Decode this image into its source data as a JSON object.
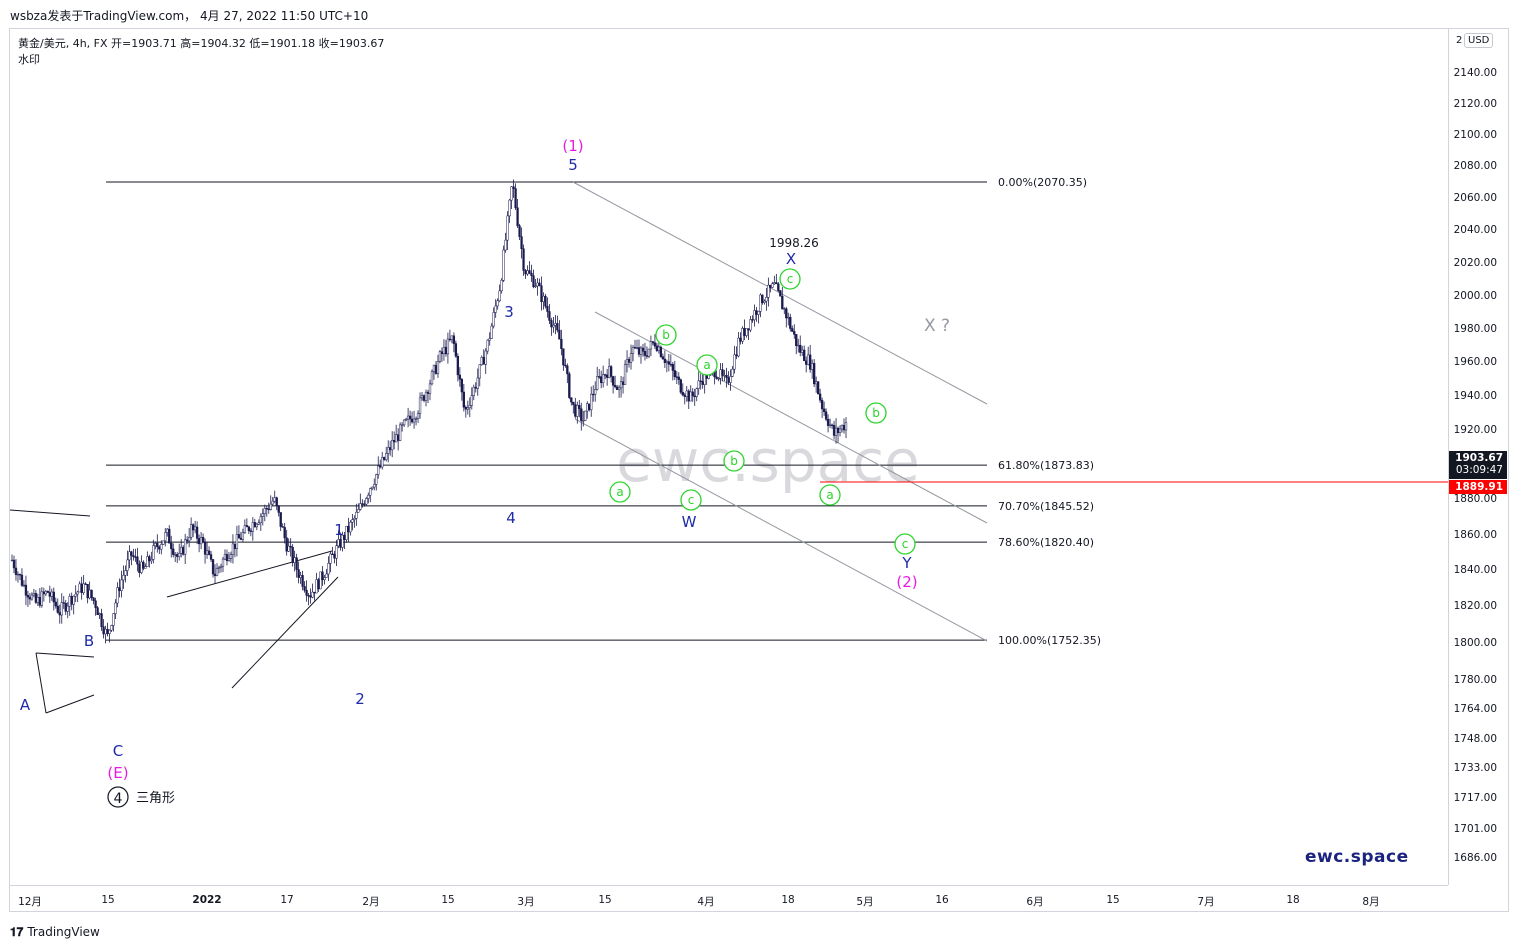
{
  "header": {
    "text": "wsbza发表于TradingView.com， 4月 27, 2022 11:50 UTC+10"
  },
  "legend": {
    "line1": "黄金/美元, 4h, FX  开=1903.71  高=1904.32  低=1901.18  收=1903.67",
    "line2": "水印"
  },
  "watermark": "ewc.space",
  "brand": "ewc.space",
  "footer": "TradingView",
  "y_axis": {
    "currency": "USD",
    "currency_prefix": "2",
    "ticks": [
      "2140.00",
      "2120.00",
      "2100.00",
      "2080.00",
      "2060.00",
      "2040.00",
      "2020.00",
      "2000.00",
      "1980.00",
      "1960.00",
      "1940.00",
      "1920.00",
      "1900.00",
      "1880.00",
      "1860.00",
      "1840.00",
      "1820.00",
      "1800.00",
      "1780.00",
      "1764.00",
      "1748.00",
      "1733.00",
      "1717.00",
      "1701.00",
      "1686.00"
    ]
  },
  "x_axis": {
    "ticks": [
      "12月",
      "15",
      "2022",
      "17",
      "2月",
      "15",
      "3月",
      "15",
      "4月",
      "18",
      "5月",
      "16",
      "6月",
      "15",
      "7月",
      "18",
      "8月"
    ]
  },
  "price_boxes": {
    "current": "1903.67",
    "countdown": "03:09:47",
    "level": "1889.91"
  },
  "fib_levels": [
    {
      "label": "0.00%(2070.35)",
      "price": 2070.35
    },
    {
      "label": "61.80%(1873.83)",
      "price": 1873.83
    },
    {
      "label": "70.70%(1845.52)",
      "price": 1845.52
    },
    {
      "label": "78.60%(1820.40)",
      "price": 1820.4
    },
    {
      "label": "100.00%(1752.35)",
      "price": 1752.35
    }
  ],
  "annotations": {
    "wave_1_pink": "(1)",
    "wave_5": "5",
    "wave_3": "3",
    "wave_4": "4",
    "wave_1": "1",
    "wave_2": "2",
    "wave_A": "A",
    "wave_B": "B",
    "wave_C": "C",
    "wave_E": "(E)",
    "circled_4": "4",
    "triangle": "三角形",
    "x_high_value": "1998.26",
    "wave_X": "X",
    "x_question": "X ?",
    "wave_W": "W",
    "wave_Y": "Y",
    "wave_2_pink": "(2)",
    "small_a": "a",
    "small_b": "b",
    "small_c": "c"
  },
  "colors": {
    "candles": "#1a1a4e",
    "blue_labels": "#1e2aa8",
    "pink": "#e81ce0",
    "green": "#2bd42b",
    "red_line": "#ff0000",
    "channel": "#9598a1"
  },
  "chart_data": {
    "type": "line",
    "title": "黄金/美元, 4h, FX",
    "ylim": [
      1680,
      2150
    ],
    "series": [
      {
        "values": [
          1808,
          1790,
          1778,
          1786,
          1772,
          1782,
          1790,
          1778,
          1754,
          1790,
          1812,
          1800,
          1816,
          1826,
          1808,
          1830,
          1820,
          1798,
          1812,
          1822,
          1832,
          1840,
          1850,
          1820,
          1800,
          1784,
          1796,
          1812,
          1826,
          1840,
          1858,
          1874,
          1890,
          1902,
          1912,
          1930,
          1950,
          1962,
          1910,
          1932,
          1960,
          2000,
          2070,
          2010,
          2000,
          1980,
          1960,
          1915,
          1905,
          1930,
          1940,
          1925,
          1955,
          1950,
          1960,
          1945,
          1930,
          1920,
          1935,
          1940,
          1930,
          1960,
          1975,
          1990,
          1998,
          1978,
          1955,
          1945,
          1915,
          1895,
          1903
        ]
      }
    ]
  }
}
